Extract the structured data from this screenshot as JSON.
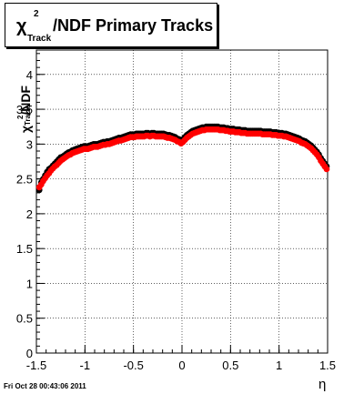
{
  "chart_data": {
    "type": "scatter",
    "title": {
      "symbol": "χ",
      "superscript": "2",
      "subscript": "Track",
      "text": "/NDF  Primary Tracks"
    },
    "ylabel": {
      "symbol": "χ",
      "superscript": "2",
      "subscript": "Track",
      "text": "/NDF"
    },
    "xlabel": "η",
    "xlim": [
      -1.5,
      1.5
    ],
    "ylim": [
      0,
      4.35
    ],
    "xticks": [
      "-1.5",
      "-1",
      "-0.5",
      "0",
      "0.5",
      "1",
      "1.5"
    ],
    "yticks": [
      "0",
      "0.5",
      "1",
      "1.5",
      "2",
      "2.5",
      "3",
      "3.5",
      "4"
    ],
    "grid": true,
    "series": [
      {
        "color": "#000000",
        "x": [
          -1.47,
          -1.45,
          -1.43,
          -1.41,
          -1.39,
          -1.37,
          -1.35,
          -1.33,
          -1.31,
          -1.29,
          -1.27,
          -1.25,
          -1.23,
          -1.21,
          -1.19,
          -1.17,
          -1.15,
          -1.13,
          -1.11,
          -1.09,
          -1.07,
          -1.05,
          -1.03,
          -1.01,
          -0.99,
          -0.97,
          -0.95,
          -0.93,
          -0.91,
          -0.89,
          -0.87,
          -0.85,
          -0.83,
          -0.81,
          -0.79,
          -0.77,
          -0.75,
          -0.73,
          -0.71,
          -0.69,
          -0.67,
          -0.65,
          -0.63,
          -0.61,
          -0.59,
          -0.57,
          -0.55,
          -0.53,
          -0.51,
          -0.49,
          -0.47,
          -0.45,
          -0.43,
          -0.41,
          -0.39,
          -0.37,
          -0.35,
          -0.33,
          -0.31,
          -0.29,
          -0.27,
          -0.25,
          -0.23,
          -0.21,
          -0.19,
          -0.17,
          -0.15,
          -0.13,
          -0.11,
          -0.09,
          -0.07,
          -0.05,
          -0.03,
          -0.01,
          0.01,
          0.03,
          0.05,
          0.07,
          0.09,
          0.11,
          0.13,
          0.15,
          0.17,
          0.19,
          0.21,
          0.23,
          0.25,
          0.27,
          0.29,
          0.31,
          0.33,
          0.35,
          0.37,
          0.39,
          0.41,
          0.43,
          0.45,
          0.47,
          0.49,
          0.51,
          0.53,
          0.55,
          0.57,
          0.59,
          0.61,
          0.63,
          0.65,
          0.67,
          0.69,
          0.71,
          0.73,
          0.75,
          0.77,
          0.79,
          0.81,
          0.83,
          0.85,
          0.87,
          0.89,
          0.91,
          0.93,
          0.95,
          0.97,
          0.99,
          1.01,
          1.03,
          1.05,
          1.07,
          1.09,
          1.11,
          1.13,
          1.15,
          1.17,
          1.19,
          1.21,
          1.23,
          1.25,
          1.27,
          1.29,
          1.31,
          1.33,
          1.35,
          1.37,
          1.39,
          1.41,
          1.43,
          1.45,
          1.47,
          1.49
        ],
        "y": [
          2.34,
          2.45,
          2.5,
          2.55,
          2.6,
          2.64,
          2.66,
          2.69,
          2.72,
          2.75,
          2.78,
          2.81,
          2.82,
          2.84,
          2.86,
          2.88,
          2.89,
          2.91,
          2.92,
          2.93,
          2.94,
          2.95,
          2.96,
          2.97,
          2.97,
          2.97,
          2.98,
          2.99,
          3.0,
          3.0,
          3.0,
          3.01,
          3.02,
          3.03,
          3.03,
          3.04,
          3.04,
          3.05,
          3.06,
          3.07,
          3.08,
          3.09,
          3.09,
          3.1,
          3.11,
          3.12,
          3.13,
          3.14,
          3.14,
          3.14,
          3.15,
          3.15,
          3.15,
          3.15,
          3.15,
          3.16,
          3.16,
          3.15,
          3.16,
          3.16,
          3.15,
          3.15,
          3.15,
          3.15,
          3.15,
          3.14,
          3.13,
          3.13,
          3.12,
          3.11,
          3.1,
          3.08,
          3.07,
          3.05,
          3.07,
          3.1,
          3.13,
          3.15,
          3.17,
          3.19,
          3.2,
          3.21,
          3.22,
          3.23,
          3.24,
          3.24,
          3.25,
          3.25,
          3.25,
          3.25,
          3.25,
          3.25,
          3.25,
          3.24,
          3.24,
          3.24,
          3.23,
          3.23,
          3.22,
          3.22,
          3.22,
          3.21,
          3.21,
          3.21,
          3.2,
          3.2,
          3.2,
          3.19,
          3.19,
          3.19,
          3.19,
          3.19,
          3.19,
          3.19,
          3.19,
          3.18,
          3.18,
          3.18,
          3.18,
          3.18,
          3.17,
          3.17,
          3.17,
          3.16,
          3.16,
          3.16,
          3.15,
          3.15,
          3.14,
          3.13,
          3.12,
          3.11,
          3.1,
          3.09,
          3.08,
          3.06,
          3.05,
          3.04,
          3.02,
          3.0,
          2.98,
          2.95,
          2.92,
          2.89,
          2.85,
          2.8,
          2.76,
          2.72,
          2.68
        ]
      },
      {
        "color": "#ff0000",
        "x": [
          -1.47,
          -1.45,
          -1.43,
          -1.41,
          -1.39,
          -1.37,
          -1.35,
          -1.33,
          -1.31,
          -1.29,
          -1.27,
          -1.25,
          -1.23,
          -1.21,
          -1.19,
          -1.17,
          -1.15,
          -1.13,
          -1.11,
          -1.09,
          -1.07,
          -1.05,
          -1.03,
          -1.01,
          -0.99,
          -0.97,
          -0.95,
          -0.93,
          -0.91,
          -0.89,
          -0.87,
          -0.85,
          -0.83,
          -0.81,
          -0.79,
          -0.77,
          -0.75,
          -0.73,
          -0.71,
          -0.69,
          -0.67,
          -0.65,
          -0.63,
          -0.61,
          -0.59,
          -0.57,
          -0.55,
          -0.53,
          -0.51,
          -0.49,
          -0.47,
          -0.45,
          -0.43,
          -0.41,
          -0.39,
          -0.37,
          -0.35,
          -0.33,
          -0.31,
          -0.29,
          -0.27,
          -0.25,
          -0.23,
          -0.21,
          -0.19,
          -0.17,
          -0.15,
          -0.13,
          -0.11,
          -0.09,
          -0.07,
          -0.05,
          -0.03,
          -0.01,
          0.01,
          0.03,
          0.05,
          0.07,
          0.09,
          0.11,
          0.13,
          0.15,
          0.17,
          0.19,
          0.21,
          0.23,
          0.25,
          0.27,
          0.29,
          0.31,
          0.33,
          0.35,
          0.37,
          0.39,
          0.41,
          0.43,
          0.45,
          0.47,
          0.49,
          0.51,
          0.53,
          0.55,
          0.57,
          0.59,
          0.61,
          0.63,
          0.65,
          0.67,
          0.69,
          0.71,
          0.73,
          0.75,
          0.77,
          0.79,
          0.81,
          0.83,
          0.85,
          0.87,
          0.89,
          0.91,
          0.93,
          0.95,
          0.97,
          0.99,
          1.01,
          1.03,
          1.05,
          1.07,
          1.09,
          1.11,
          1.13,
          1.15,
          1.17,
          1.19,
          1.21,
          1.23,
          1.25,
          1.27,
          1.29,
          1.31,
          1.33,
          1.35,
          1.37,
          1.39,
          1.41,
          1.43,
          1.45,
          1.47,
          1.49
        ],
        "y": [
          2.38,
          2.42,
          2.47,
          2.51,
          2.55,
          2.58,
          2.62,
          2.65,
          2.68,
          2.7,
          2.73,
          2.76,
          2.78,
          2.8,
          2.82,
          2.84,
          2.85,
          2.87,
          2.88,
          2.89,
          2.9,
          2.91,
          2.92,
          2.93,
          2.93,
          2.93,
          2.94,
          2.95,
          2.96,
          2.96,
          2.96,
          2.97,
          2.98,
          2.99,
          2.99,
          3.0,
          3.0,
          3.01,
          3.02,
          3.03,
          3.04,
          3.05,
          3.05,
          3.06,
          3.07,
          3.08,
          3.09,
          3.1,
          3.1,
          3.1,
          3.11,
          3.11,
          3.11,
          3.11,
          3.11,
          3.12,
          3.12,
          3.11,
          3.12,
          3.12,
          3.11,
          3.11,
          3.11,
          3.11,
          3.11,
          3.1,
          3.09,
          3.09,
          3.08,
          3.07,
          3.06,
          3.04,
          3.03,
          3.01,
          3.03,
          3.06,
          3.09,
          3.11,
          3.13,
          3.15,
          3.16,
          3.17,
          3.18,
          3.19,
          3.2,
          3.2,
          3.21,
          3.21,
          3.21,
          3.21,
          3.21,
          3.21,
          3.21,
          3.2,
          3.2,
          3.2,
          3.19,
          3.19,
          3.18,
          3.18,
          3.18,
          3.17,
          3.17,
          3.17,
          3.16,
          3.16,
          3.16,
          3.15,
          3.15,
          3.15,
          3.15,
          3.15,
          3.15,
          3.15,
          3.15,
          3.14,
          3.14,
          3.14,
          3.14,
          3.14,
          3.13,
          3.13,
          3.13,
          3.12,
          3.12,
          3.12,
          3.11,
          3.11,
          3.1,
          3.09,
          3.08,
          3.07,
          3.06,
          3.05,
          3.04,
          3.02,
          3.01,
          3.0,
          2.98,
          2.96,
          2.94,
          2.91,
          2.88,
          2.85,
          2.81,
          2.76,
          2.72,
          2.68,
          2.64
        ]
      }
    ]
  },
  "footer": "Fri Oct 28 00:43:06 2011"
}
